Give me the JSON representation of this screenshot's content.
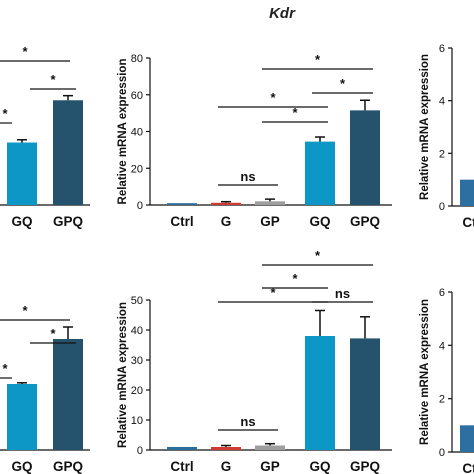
{
  "figure": {
    "title": "Kdr"
  },
  "colors": {
    "Ctrl": "#2b6d99",
    "G": "#cf3a33",
    "GP": "#9e9e9e",
    "GQ": "#0c97c6",
    "GPQ": "#25536e",
    "faint_bar": "#2c6fa0",
    "axis": "#111111"
  },
  "chart_data": [
    {
      "id": "top-left-partial",
      "type": "bar",
      "categories": [
        "GQ",
        "GPQ"
      ],
      "values": [
        34,
        57
      ],
      "errors": [
        1.5,
        2.5
      ],
      "significance": [
        {
          "label": "*",
          "pairs": "upper"
        },
        {
          "label": "*",
          "pairs": "GQ-GPQ"
        },
        {
          "label": "*",
          "pairs": "lower"
        }
      ]
    },
    {
      "id": "top-middle",
      "type": "bar",
      "categories": [
        "Ctrl",
        "G",
        "GP",
        "GQ",
        "GPQ"
      ],
      "values": [
        1,
        1.2,
        2,
        34.5,
        51.5
      ],
      "errors": [
        0.3,
        0.6,
        1.2,
        2.5,
        5.5
      ],
      "ylabel": "Relative mRNA expression",
      "ylim": [
        0,
        80
      ],
      "yticks": [
        "0",
        "20",
        "40",
        "60",
        "80"
      ],
      "significance": [
        {
          "label": "ns",
          "from": "G",
          "to": "GP"
        },
        {
          "label": "*",
          "from": "GP",
          "to": "GQ"
        },
        {
          "label": "*",
          "from": "G",
          "to": "GQ"
        },
        {
          "label": "*",
          "from": "GQ",
          "to": "GPQ"
        },
        {
          "label": "*",
          "from": "GP",
          "to": "GPQ"
        }
      ]
    },
    {
      "id": "top-right-partial",
      "type": "bar",
      "categories": [
        "Ctrl"
      ],
      "values": [
        1
      ],
      "ylabel": "Relative mRNA expression",
      "ylim": [
        0,
        6
      ],
      "yticks": [
        "0",
        "2",
        "4",
        "6"
      ]
    },
    {
      "id": "bottom-left-partial",
      "type": "bar",
      "categories": [
        "GQ",
        "GPQ"
      ],
      "values": [
        22,
        37
      ],
      "errors": [
        0.4,
        4
      ],
      "significance": [
        {
          "label": "*",
          "pairs": "upper"
        },
        {
          "label": "*",
          "pairs": "GQ-GPQ"
        },
        {
          "label": "*",
          "pairs": "lower"
        }
      ]
    },
    {
      "id": "bottom-middle",
      "type": "bar",
      "categories": [
        "Ctrl",
        "G",
        "GP",
        "GQ",
        "GPQ"
      ],
      "values": [
        1,
        1,
        1.5,
        38,
        37.2
      ],
      "errors": [
        0.2,
        0.5,
        0.6,
        8.5,
        7.2
      ],
      "ylabel": "Relative mRNA expression",
      "ylim": [
        0,
        50
      ],
      "yticks": [
        "0",
        "10",
        "20",
        "30",
        "40",
        "50"
      ],
      "significance": [
        {
          "label": "ns",
          "from": "G",
          "to": "GP"
        },
        {
          "label": "*",
          "from": "GP",
          "to": "GQ"
        },
        {
          "label": "*",
          "from": "G",
          "to": "GQ"
        },
        {
          "label": "ns",
          "from": "GQ",
          "to": "GPQ"
        },
        {
          "label": "*",
          "from": "GP",
          "to": "GPQ"
        }
      ]
    },
    {
      "id": "bottom-right-partial",
      "type": "bar",
      "categories": [
        "Ctrl"
      ],
      "values": [
        1
      ],
      "ylabel": "Relative mRNA expression",
      "ylim": [
        0,
        6
      ],
      "yticks": [
        "0",
        "2",
        "4",
        "6"
      ]
    }
  ]
}
